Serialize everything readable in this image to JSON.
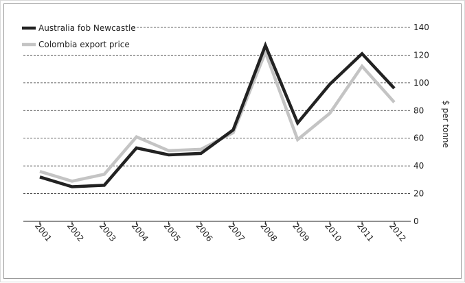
{
  "chart_data": {
    "type": "line",
    "title": "",
    "xlabel": "",
    "ylabel": "$ per tonne",
    "ylim": [
      0,
      140
    ],
    "yticks": [
      0,
      20,
      40,
      60,
      80,
      100,
      120,
      140
    ],
    "grid": true,
    "legend_position": "top-left",
    "categories": [
      "2001",
      "2002",
      "2003",
      "2004",
      "2005",
      "2006",
      "2007",
      "2008",
      "2009",
      "2010",
      "2011",
      "2012"
    ],
    "series": [
      {
        "name": "Australia fob Newcastle",
        "color": "#222222",
        "values": [
          32,
          25,
          26,
          53,
          48,
          49,
          66,
          127,
          71,
          99,
          121,
          96
        ]
      },
      {
        "name": "Colombia export price",
        "color": "#c4c4c4",
        "values": [
          36,
          29,
          34,
          61,
          51,
          52,
          64,
          122,
          59,
          78,
          112,
          86
        ]
      }
    ]
  }
}
